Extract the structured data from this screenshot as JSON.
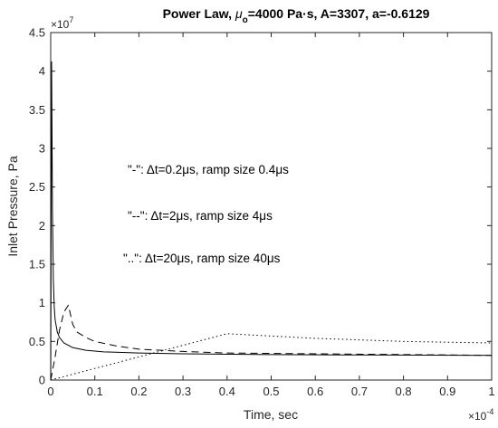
{
  "chart_data": {
    "type": "line",
    "title_prefix": "Power Law, ",
    "title_mu": "μ",
    "title_mu_sub": "o",
    "title_rest": "=4000 Pa·s, A=3307, a=-0.6129",
    "xlabel": "Time, sec",
    "ylabel": "Inlet Pressure, Pa",
    "x_exponent_base": "×10",
    "x_exponent_power": "-4",
    "y_exponent_base": "×10",
    "y_exponent_power": "7",
    "xlim": [
      0,
      1
    ],
    "ylim": [
      0,
      4.5
    ],
    "xticks": [
      0,
      0.1,
      0.2,
      0.3,
      0.4,
      0.5,
      0.6,
      0.7,
      0.8,
      0.9,
      1
    ],
    "xtick_labels": [
      "0",
      "0.1",
      "0.2",
      "0.3",
      "0.4",
      "0.5",
      "0.6",
      "0.7",
      "0.8",
      "0.9",
      "1"
    ],
    "yticks": [
      0,
      0.5,
      1,
      1.5,
      2,
      2.5,
      3,
      3.5,
      4,
      4.5
    ],
    "ytick_labels": [
      "0",
      "0.5",
      "1",
      "1.5",
      "2",
      "2.5",
      "3",
      "3.5",
      "4",
      "4.5"
    ],
    "grid": false,
    "annotations": [
      "\"-\": Δt=0.2μs, ramp size 0.4μs",
      "\"--\": Δt=2μs, ramp size 4μs",
      "\"..\": Δt=20μs, ramp size 40μs"
    ],
    "series": [
      {
        "style": "solid",
        "x": [
          0,
          0.002,
          0.004,
          0.006,
          0.008,
          0.01,
          0.015,
          0.02,
          0.03,
          0.05,
          0.08,
          0.12,
          0.2,
          0.3,
          0.5,
          0.7,
          1.0
        ],
        "y": [
          0,
          4.12,
          2.2,
          1.3,
          0.95,
          0.78,
          0.62,
          0.55,
          0.48,
          0.42,
          0.385,
          0.365,
          0.35,
          0.34,
          0.33,
          0.325,
          0.32
        ]
      },
      {
        "style": "dashed",
        "x": [
          0,
          0.01,
          0.02,
          0.03,
          0.04,
          0.05,
          0.06,
          0.08,
          0.1,
          0.15,
          0.2,
          0.3,
          0.4,
          0.6,
          0.8,
          1.0
        ],
        "y": [
          0,
          0.3,
          0.65,
          0.88,
          0.97,
          0.72,
          0.62,
          0.55,
          0.5,
          0.44,
          0.4,
          0.37,
          0.35,
          0.34,
          0.33,
          0.32
        ]
      },
      {
        "style": "dotted",
        "x": [
          0,
          0.1,
          0.2,
          0.3,
          0.4,
          0.5,
          0.6,
          0.7,
          0.8,
          0.9,
          1.0
        ],
        "y": [
          0,
          0.15,
          0.3,
          0.45,
          0.6,
          0.57,
          0.54,
          0.52,
          0.5,
          0.49,
          0.48
        ]
      }
    ]
  }
}
